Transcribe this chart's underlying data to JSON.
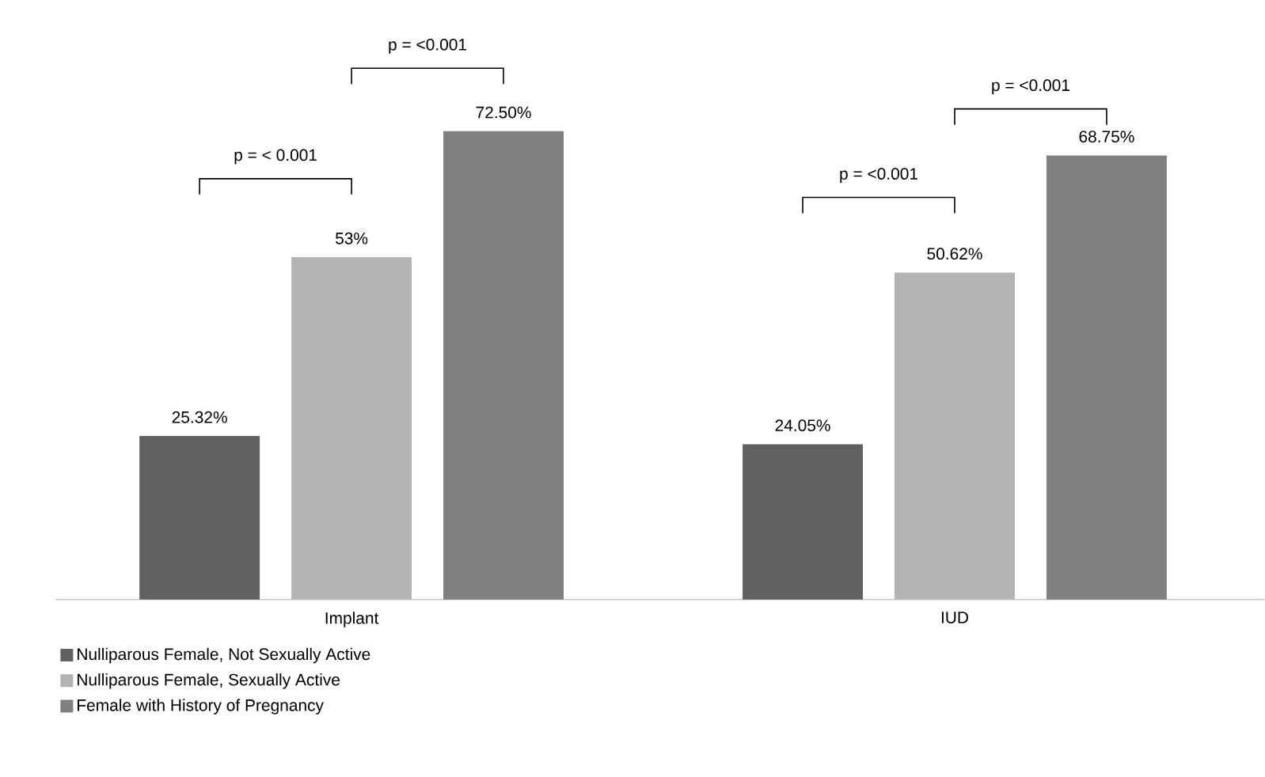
{
  "chart_data": {
    "type": "bar",
    "categories": [
      "Implant",
      "IUD"
    ],
    "series": [
      {
        "name": "Nulliparous Female, Not Sexually Active",
        "color": "#616161",
        "values": [
          25.32,
          24.05
        ],
        "value_labels": [
          "25.32%",
          "24.05%"
        ]
      },
      {
        "name": "Nulliparous Female, Sexually Active",
        "color": "#b3b3b3",
        "values": [
          53,
          50.62
        ],
        "value_labels": [
          "53%",
          "50.62%"
        ]
      },
      {
        "name": "Female with History of Pregnancy",
        "color": "#808080",
        "values": [
          72.5,
          68.75
        ],
        "value_labels": [
          "72.50%",
          "68.75%"
        ]
      }
    ],
    "legend": "bottom left",
    "annotations": [
      "p = < 0.001",
      "p = <0.001",
      "p = <0.001",
      "p = <0.001"
    ]
  }
}
